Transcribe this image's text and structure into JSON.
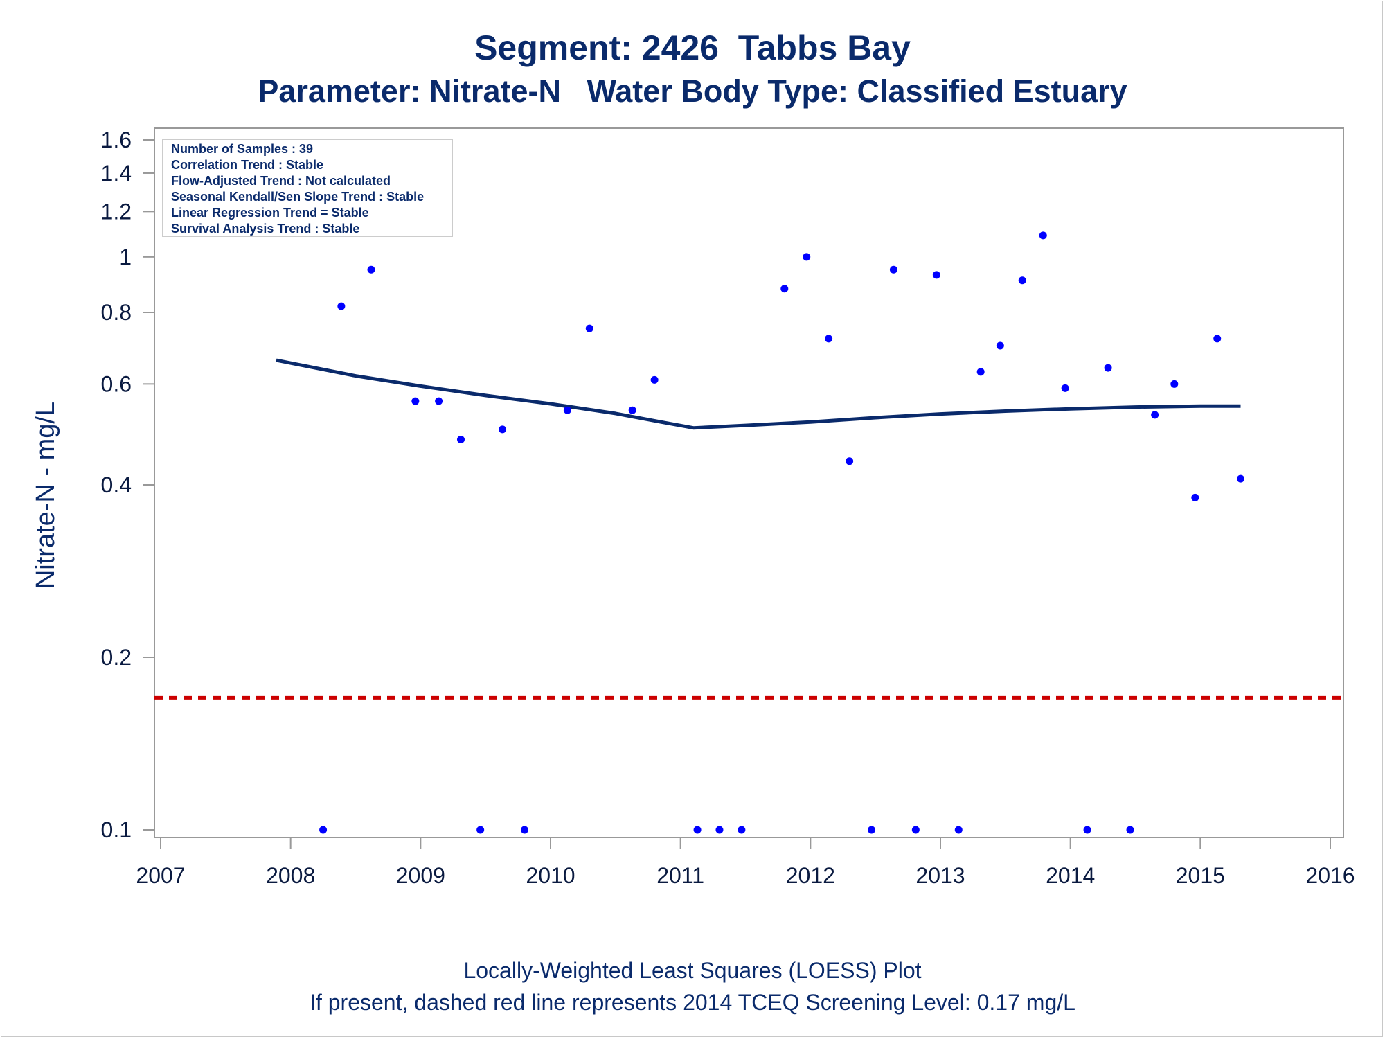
{
  "colors": {
    "text": "#0a2a6b",
    "points": "#0000ff",
    "loess": "#0a2a6b",
    "screening_line": "#cc0000",
    "frame": "#999999"
  },
  "chart_data": {
    "type": "scatter",
    "title": "Segment: 2426  Tabbs Bay",
    "subtitle": "Parameter: Nitrate-N   Water Body Type: Classified Estuary",
    "xlabel": "",
    "ylabel": "Nitrate-N - mg/L",
    "xlim": [
      2007,
      2016
    ],
    "ylim": [
      0.1,
      1.6
    ],
    "y_scale": "log",
    "x_ticks": [
      "2007",
      "2008",
      "2009",
      "2010",
      "2011",
      "2012",
      "2013",
      "2014",
      "2015",
      "2016"
    ],
    "y_ticks": [
      0.1,
      0.2,
      0.4,
      0.6,
      0.8,
      1,
      1.2,
      1.4,
      1.6
    ],
    "y_tick_labels": [
      "0.1",
      "0.2",
      "0.4",
      "0.6",
      "0.8",
      "1",
      "1.2",
      "1.4",
      "1.6"
    ],
    "grid": false,
    "stats_box": {
      "position": "top-left",
      "lines": [
        "Number of Samples : 39",
        "Correlation Trend : Stable",
        "Flow-Adjusted Trend : Not calculated",
        "Seasonal Kendall/Sen Slope Trend : Stable",
        "Linear Regression Trend = Stable",
        "Survival Analysis Trend : Stable"
      ]
    },
    "samples": [
      {
        "x": 2007.89,
        "y": 1.57
      },
      {
        "x": 2008.25,
        "y": 0.1
      },
      {
        "x": 2008.39,
        "y": 0.82
      },
      {
        "x": 2008.62,
        "y": 0.95
      },
      {
        "x": 2008.96,
        "y": 0.56
      },
      {
        "x": 2009.14,
        "y": 0.56
      },
      {
        "x": 2009.31,
        "y": 0.48
      },
      {
        "x": 2009.46,
        "y": 0.1
      },
      {
        "x": 2009.63,
        "y": 0.5
      },
      {
        "x": 2009.8,
        "y": 0.1
      },
      {
        "x": 2010.13,
        "y": 0.54
      },
      {
        "x": 2010.3,
        "y": 0.75
      },
      {
        "x": 2010.63,
        "y": 0.54
      },
      {
        "x": 2010.8,
        "y": 0.61
      },
      {
        "x": 2011.13,
        "y": 0.1
      },
      {
        "x": 2011.3,
        "y": 0.1
      },
      {
        "x": 2011.47,
        "y": 0.1
      },
      {
        "x": 2011.8,
        "y": 0.88
      },
      {
        "x": 2011.97,
        "y": 1.0
      },
      {
        "x": 2012.14,
        "y": 0.72
      },
      {
        "x": 2012.3,
        "y": 0.44
      },
      {
        "x": 2012.47,
        "y": 0.1
      },
      {
        "x": 2012.64,
        "y": 0.95
      },
      {
        "x": 2012.81,
        "y": 0.1
      },
      {
        "x": 2012.97,
        "y": 0.93
      },
      {
        "x": 2013.14,
        "y": 0.1
      },
      {
        "x": 2013.31,
        "y": 0.63
      },
      {
        "x": 2013.46,
        "y": 0.7
      },
      {
        "x": 2013.63,
        "y": 0.91
      },
      {
        "x": 2013.79,
        "y": 1.09
      },
      {
        "x": 2013.96,
        "y": 0.59
      },
      {
        "x": 2014.13,
        "y": 0.1
      },
      {
        "x": 2014.29,
        "y": 0.64
      },
      {
        "x": 2014.46,
        "y": 0.1
      },
      {
        "x": 2014.65,
        "y": 0.53
      },
      {
        "x": 2014.8,
        "y": 0.6
      },
      {
        "x": 2014.96,
        "y": 0.38
      },
      {
        "x": 2015.13,
        "y": 0.72
      },
      {
        "x": 2015.31,
        "y": 0.41
      }
    ],
    "loess": [
      {
        "x": 2007.89,
        "y": 0.66
      },
      {
        "x": 2008.5,
        "y": 0.62
      },
      {
        "x": 2009.0,
        "y": 0.595
      },
      {
        "x": 2009.5,
        "y": 0.573
      },
      {
        "x": 2010.0,
        "y": 0.554
      },
      {
        "x": 2010.5,
        "y": 0.533
      },
      {
        "x": 2010.85,
        "y": 0.515
      },
      {
        "x": 2011.1,
        "y": 0.503
      },
      {
        "x": 2011.5,
        "y": 0.508
      },
      {
        "x": 2012.0,
        "y": 0.515
      },
      {
        "x": 2012.5,
        "y": 0.524
      },
      {
        "x": 2013.0,
        "y": 0.532
      },
      {
        "x": 2013.5,
        "y": 0.538
      },
      {
        "x": 2014.0,
        "y": 0.543
      },
      {
        "x": 2014.5,
        "y": 0.547
      },
      {
        "x": 2015.0,
        "y": 0.549
      },
      {
        "x": 2015.31,
        "y": 0.549
      }
    ],
    "screening_level": {
      "y": 0.17
    }
  },
  "footnotes": {
    "line1": "Locally-Weighted Least Squares (LOESS) Plot",
    "line2": "If present, dashed red line represents 2014 TCEQ Screening Level: 0.17 mg/L"
  }
}
